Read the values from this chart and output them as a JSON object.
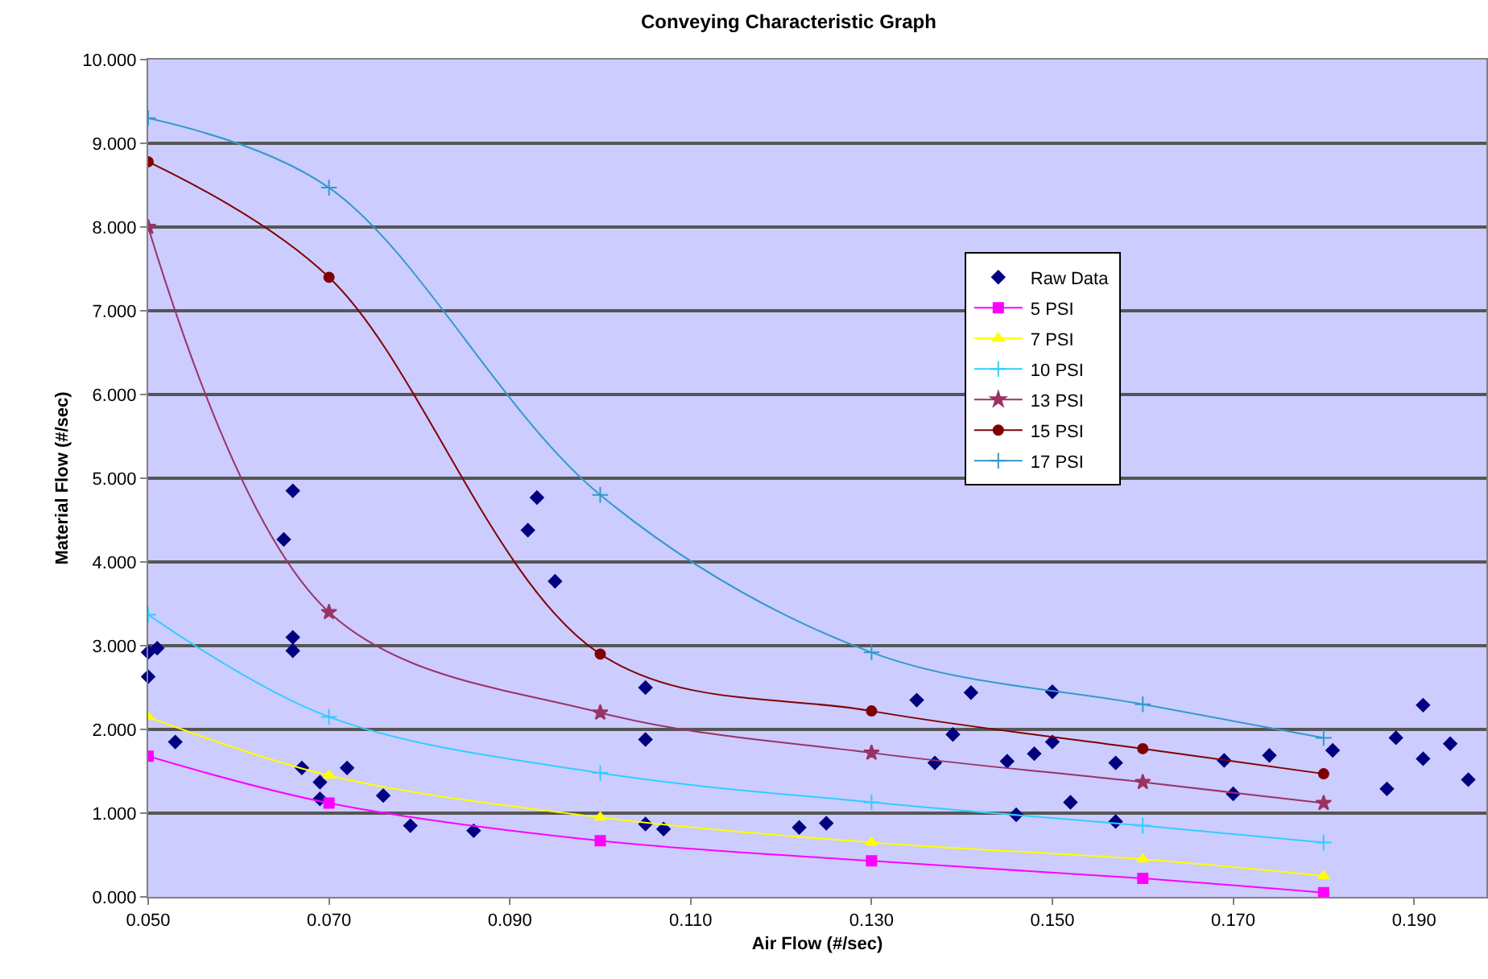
{
  "chart_data": {
    "type": "line",
    "title": "Conveying Characteristic Graph",
    "xlabel": "Air Flow (#/sec)",
    "ylabel": "Material Flow (#/sec)",
    "xlim": [
      0.05,
      0.198
    ],
    "xticks": [
      {
        "value": 0.05,
        "label": "0.050"
      },
      {
        "value": 0.07,
        "label": "0.070"
      },
      {
        "value": 0.09,
        "label": "0.090"
      },
      {
        "value": 0.11,
        "label": "0.110"
      },
      {
        "value": 0.13,
        "label": "0.130"
      },
      {
        "value": 0.15,
        "label": "0.150"
      },
      {
        "value": 0.17,
        "label": "0.170"
      },
      {
        "value": 0.19,
        "label": "0.190"
      }
    ],
    "ylim": [
      0,
      10
    ],
    "yticks": [
      {
        "value": 0,
        "label": "0.000"
      },
      {
        "value": 1,
        "label": "1.000"
      },
      {
        "value": 2,
        "label": "2.000"
      },
      {
        "value": 3,
        "label": "3.000"
      },
      {
        "value": 4,
        "label": "4.000"
      },
      {
        "value": 5,
        "label": "5.000"
      },
      {
        "value": 6,
        "label": "6.000"
      },
      {
        "value": 7,
        "label": "7.000"
      },
      {
        "value": 8,
        "label": "8.000"
      },
      {
        "value": 9,
        "label": "9.000"
      },
      {
        "value": 10,
        "label": "10.000"
      }
    ],
    "grid": "y",
    "legend": "right",
    "series": [
      {
        "name": "Raw Data",
        "type": "scatter",
        "marker": "diamond",
        "color": "#000080",
        "x": [
          0.05,
          0.05,
          0.051,
          0.053,
          0.065,
          0.066,
          0.066,
          0.066,
          0.067,
          0.069,
          0.069,
          0.072,
          0.076,
          0.079,
          0.086,
          0.092,
          0.093,
          0.095,
          0.105,
          0.105,
          0.105,
          0.107,
          0.122,
          0.125,
          0.135,
          0.137,
          0.139,
          0.141,
          0.145,
          0.146,
          0.148,
          0.15,
          0.15,
          0.152,
          0.157,
          0.157,
          0.169,
          0.17,
          0.174,
          0.181,
          0.187,
          0.188,
          0.191,
          0.191,
          0.194,
          0.196
        ],
        "values": [
          2.92,
          2.63,
          2.97,
          1.85,
          4.27,
          4.85,
          3.1,
          2.94,
          1.54,
          1.37,
          1.17,
          1.54,
          1.21,
          0.85,
          0.79,
          4.38,
          4.77,
          3.77,
          2.5,
          1.88,
          0.87,
          0.81,
          0.83,
          0.88,
          2.35,
          1.6,
          1.94,
          2.44,
          1.62,
          0.98,
          1.71,
          2.45,
          1.85,
          1.13,
          1.6,
          0.9,
          1.63,
          1.23,
          1.69,
          1.75,
          1.29,
          1.9,
          2.29,
          1.65,
          1.83,
          1.4
        ]
      },
      {
        "name": "5 PSI",
        "marker": "square",
        "color": "#ff00ff",
        "x": [
          0.05,
          0.07,
          0.1,
          0.13,
          0.16,
          0.18
        ],
        "values": [
          1.68,
          1.12,
          0.67,
          0.43,
          0.22,
          0.05
        ]
      },
      {
        "name": "7 PSI",
        "marker": "triangle",
        "color": "#ffff00",
        "x": [
          0.05,
          0.07,
          0.1,
          0.13,
          0.16,
          0.18
        ],
        "values": [
          2.15,
          1.45,
          0.95,
          0.65,
          0.45,
          0.25
        ]
      },
      {
        "name": "10 PSI",
        "marker": "cross",
        "color": "#33ccff",
        "x": [
          0.05,
          0.07,
          0.1,
          0.13,
          0.16,
          0.18
        ],
        "values": [
          3.37,
          2.15,
          1.48,
          1.13,
          0.85,
          0.65
        ]
      },
      {
        "name": "13 PSI",
        "marker": "star",
        "color": "#993366",
        "x": [
          0.05,
          0.07,
          0.1,
          0.13,
          0.16,
          0.18
        ],
        "values": [
          8.0,
          3.4,
          2.2,
          1.72,
          1.37,
          1.12
        ]
      },
      {
        "name": "15 PSI",
        "marker": "circle",
        "color": "#800000",
        "x": [
          0.05,
          0.07,
          0.1,
          0.13,
          0.16,
          0.18
        ],
        "values": [
          8.78,
          7.4,
          2.9,
          2.22,
          1.77,
          1.47
        ]
      },
      {
        "name": "17 PSI",
        "marker": "cross",
        "color": "#3399cc",
        "x": [
          0.05,
          0.07,
          0.1,
          0.13,
          0.16,
          0.18
        ],
        "values": [
          9.3,
          8.47,
          4.8,
          2.92,
          2.3,
          1.9
        ]
      }
    ]
  }
}
